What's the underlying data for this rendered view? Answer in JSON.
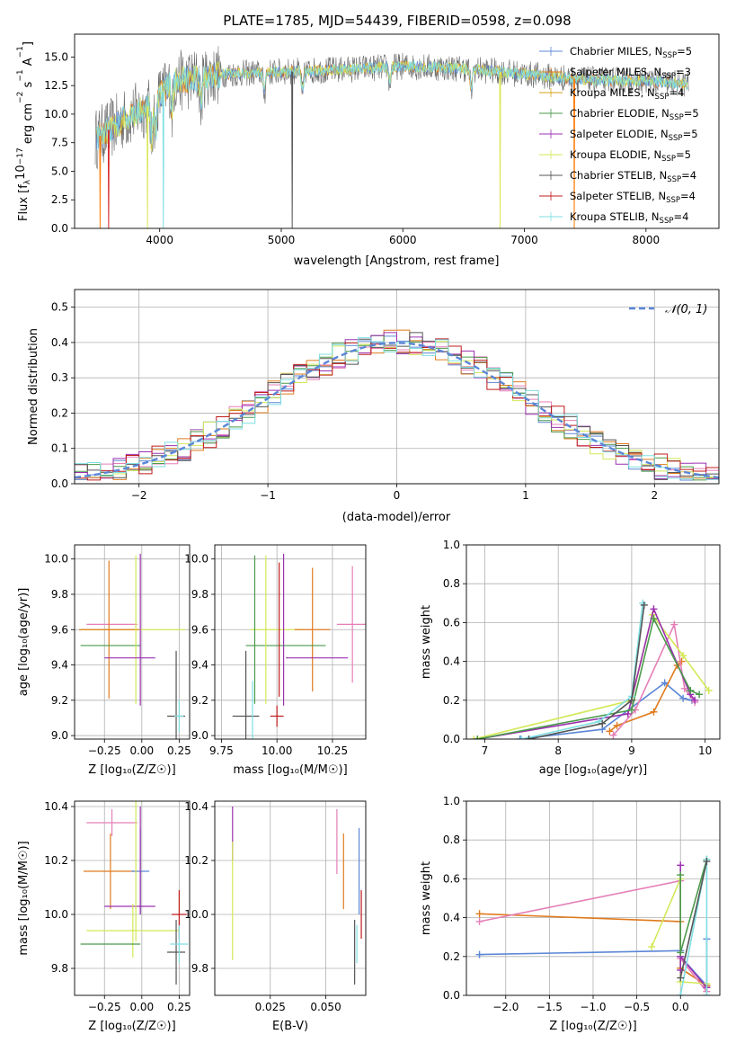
{
  "title": "PLATE=1785, MJD=54439, FIBERID=0598, z=0.098",
  "colors": {
    "chabrier_miles": "#1f77b4",
    "salpeter_miles": "#ff7f0e",
    "kroupa_miles": "#d4a017",
    "chabrier_elodie": "#2ca02c",
    "salpeter_elodie": "#9467bd",
    "kroupa_elodie": "#dbe85a",
    "chabrier_stelib": "#555555",
    "salpeter_stelib": "#d62728",
    "kroupa_stelib": "#7fdfe3",
    "blue": "#5b86d6",
    "orange": "#e07b1e",
    "pink": "#e57fb8",
    "green": "#4a9a4a",
    "purple": "#9b30b0",
    "yellow": "#d4e857",
    "cyan": "#7fdfe3",
    "red": "#c01c1c",
    "gray": "#555555",
    "grid": "#b0b0b0"
  },
  "legend_spectrum": [
    {
      "label": "Chabrier MILES, N",
      "sub": "SSP",
      "suffix": "=5",
      "color": "#5b86d6"
    },
    {
      "label": "Salpeter MILES, N",
      "sub": "SSP",
      "suffix": "=3",
      "color": "#e07b1e"
    },
    {
      "label": "Kroupa MILES, N",
      "sub": "SSP",
      "suffix": "=4",
      "color": "#d4a017"
    },
    {
      "label": "Chabrier ELODIE, N",
      "sub": "SSP",
      "suffix": "=5",
      "color": "#4a9a4a"
    },
    {
      "label": "Salpeter ELODIE, N",
      "sub": "SSP",
      "suffix": "=5",
      "color": "#9b30b0"
    },
    {
      "label": "Kroupa ELODIE, N",
      "sub": "SSP",
      "suffix": "=5",
      "color": "#d4e857"
    },
    {
      "label": "Chabrier STELIB, N",
      "sub": "SSP",
      "suffix": "=4",
      "color": "#555555"
    },
    {
      "label": "Salpeter STELIB, N",
      "sub": "SSP",
      "suffix": "=4",
      "color": "#c01c1c"
    },
    {
      "label": "Kroupa STELIB, N",
      "sub": "SSP",
      "suffix": "=4",
      "color": "#7fdfe3"
    }
  ],
  "legend_hist": "𝒩(0, 1)",
  "chart_data": [
    {
      "type": "line",
      "name": "spectrum",
      "xlabel": "wavelength [Angstrom, rest frame]",
      "ylabel_parts": [
        "Flux [f",
        "λ",
        "10",
        "−17",
        " erg cm",
        "−2",
        " s",
        "−1",
        " A",
        "−1",
        "]"
      ],
      "xlim": [
        3300,
        8600
      ],
      "ylim": [
        0,
        17
      ],
      "xticks": [
        4000,
        5000,
        6000,
        7000,
        8000
      ],
      "yticks": [
        0.0,
        2.5,
        5.0,
        7.5,
        10.0,
        12.5,
        15.0
      ],
      "ytick_labels": [
        "0.0",
        "2.5",
        "5.0",
        "7.5",
        "10.0",
        "12.5",
        "15.0"
      ],
      "x_start": 3470,
      "x_end": 8350,
      "continuum": [
        [
          3470,
          7.8
        ],
        [
          3700,
          9.5
        ],
        [
          3950,
          11.0
        ],
        [
          4100,
          12.8
        ],
        [
          4500,
          13.5
        ],
        [
          5000,
          13.7
        ],
        [
          5500,
          13.9
        ],
        [
          6000,
          14.2
        ],
        [
          6500,
          14.0
        ],
        [
          7000,
          13.5
        ],
        [
          7500,
          13.0
        ],
        [
          8000,
          12.9
        ],
        [
          8350,
          12.6
        ]
      ],
      "absorption": [
        [
          3933,
          3.5
        ],
        [
          3968,
          3.0
        ],
        [
          4101,
          2.5
        ],
        [
          4340,
          2.5
        ],
        [
          4861,
          2.0
        ],
        [
          5175,
          2.0
        ],
        [
          5893,
          1.5
        ],
        [
          6563,
          2.0
        ]
      ],
      "drops": [
        {
          "x": 3510,
          "series": "salpeter_miles"
        },
        {
          "x": 3580,
          "series": "salpeter_stelib"
        },
        {
          "x": 3900,
          "series": "kroupa_elodie"
        },
        {
          "x": 4030,
          "series": "kroupa_stelib"
        },
        {
          "x": 5090,
          "series": "chabrier_stelib"
        },
        {
          "x": 6800,
          "series": "kroupa_elodie"
        },
        {
          "x": 7410,
          "series": "salpeter_miles"
        }
      ]
    },
    {
      "type": "bar",
      "name": "residual-histogram",
      "xlabel": "(data-model)/error",
      "ylabel": "Normed distribution",
      "xlim": [
        -2.5,
        2.5
      ],
      "ylim": [
        0,
        0.55
      ],
      "xticks": [
        -2,
        -1,
        0,
        1,
        2
      ],
      "xtick_labels": [
        "−2",
        "−1",
        "0",
        "1",
        "2"
      ],
      "yticks": [
        0.0,
        0.1,
        0.2,
        0.3,
        0.4,
        0.5
      ],
      "ytick_labels": [
        "0.0",
        "0.1",
        "0.2",
        "0.3",
        "0.4",
        "0.5"
      ],
      "bin_width": 0.1,
      "gaussian": {
        "mean": 0,
        "sigma": 1
      }
    },
    {
      "type": "scatter",
      "name": "age-vs-metallicity",
      "xlabel": "Z [log₁₀(Z/Z☉)]",
      "ylabel": "age  [log₁₀(age/yr)]",
      "xlim": [
        -0.45,
        0.32
      ],
      "ylim": [
        8.98,
        10.08
      ],
      "xticks": [
        -0.25,
        0.0,
        0.25
      ],
      "xtick_labels": [
        "−0.25",
        "0.00",
        "0.25"
      ],
      "yticks": [
        9.0,
        9.2,
        9.4,
        9.6,
        9.8,
        10.0
      ],
      "ytick_labels": [
        "9.0",
        "9.2",
        "9.4",
        "9.6",
        "9.8",
        "10.0"
      ],
      "points": [
        {
          "x": -0.2,
          "y": 9.63,
          "xerr": 0.17,
          "yerr": 0.0,
          "color": "pink"
        },
        {
          "x": -0.06,
          "y": 9.6,
          "xerr": 0.35,
          "yerr": 0.0,
          "color": "yellow"
        },
        {
          "x": -0.22,
          "y": 9.6,
          "xerr": 0.2,
          "yerr": 0.39,
          "color": "orange"
        },
        {
          "x": -0.21,
          "y": 9.51,
          "xerr": 0.2,
          "yerr": 0.0,
          "color": "green"
        },
        {
          "x": -0.04,
          "y": 9.6,
          "xerr": 0.0,
          "yerr": 0.42,
          "color": "yellow"
        },
        {
          "x": -0.01,
          "y": 9.6,
          "xerr": 0.0,
          "yerr": 0.43,
          "color": "purple"
        },
        {
          "x": -0.08,
          "y": 9.44,
          "xerr": 0.17,
          "yerr": 0.0,
          "color": "purple"
        },
        {
          "x": 0.23,
          "y": 9.11,
          "xerr": 0.06,
          "yerr": 0.37,
          "color": "gray"
        },
        {
          "x": 0.25,
          "y": 9.11,
          "xerr": 0.03,
          "yerr": 0.09,
          "color": "cyan"
        }
      ]
    },
    {
      "type": "scatter",
      "name": "age-vs-mass",
      "xlabel": "mass [log₁₀(M/M☉)]",
      "ylabel": "",
      "xlim": [
        9.72,
        10.4
      ],
      "ylim": [
        8.98,
        10.08
      ],
      "xticks": [
        9.75,
        10.0,
        10.25
      ],
      "xtick_labels": [
        "9.75",
        "10.00",
        "10.25"
      ],
      "yticks": [
        9.0,
        9.2,
        9.4,
        9.6,
        9.8,
        10.0
      ],
      "ytick_labels": [
        "9.0",
        "9.2",
        "9.4",
        "9.6",
        "9.8",
        "10.0"
      ],
      "points": [
        {
          "x": 10.34,
          "y": 9.63,
          "xerr": 0.07,
          "yerr": 0.33,
          "color": "pink"
        },
        {
          "x": 10.0,
          "y": 9.6,
          "xerr": 0.12,
          "yerr": 0.0,
          "color": "yellow"
        },
        {
          "x": 10.16,
          "y": 9.6,
          "xerr": 0.08,
          "yerr": 0.35,
          "color": "orange"
        },
        {
          "x": 10.04,
          "y": 9.51,
          "xerr": 0.18,
          "yerr": 0.0,
          "color": "green"
        },
        {
          "x": 9.95,
          "y": 9.6,
          "xerr": 0.0,
          "yerr": 0.42,
          "color": "yellow"
        },
        {
          "x": 10.03,
          "y": 9.6,
          "xerr": 0.0,
          "yerr": 0.43,
          "color": "purple"
        },
        {
          "x": 10.18,
          "y": 9.44,
          "xerr": 0.14,
          "yerr": 0.0,
          "color": "purple"
        },
        {
          "x": 9.86,
          "y": 9.11,
          "xerr": 0.06,
          "yerr": 0.37,
          "color": "gray"
        },
        {
          "x": 9.89,
          "y": 9.11,
          "xerr": 0.0,
          "yerr": 0.2,
          "color": "cyan"
        },
        {
          "x": 10.0,
          "y": 9.11,
          "xerr": 0.03,
          "yerr": 0.06,
          "color": "red"
        },
        {
          "x": 9.9,
          "y": 9.6,
          "xerr": 0.0,
          "yerr": 0.42,
          "color": "green"
        },
        {
          "x": 10.01,
          "y": 9.6,
          "xerr": 0.0,
          "yerr": 0.38,
          "color": "red"
        }
      ]
    },
    {
      "type": "line",
      "name": "mass-weight-vs-age",
      "xlabel": "age  [log₁₀(age/yr)]",
      "ylabel": "mass weight",
      "xlim": [
        6.75,
        10.2
      ],
      "ylim": [
        0,
        1
      ],
      "xticks": [
        7,
        8,
        9,
        10
      ],
      "xtick_labels": [
        "7",
        "8",
        "9",
        "10"
      ],
      "yticks": [
        0.0,
        0.2,
        0.4,
        0.6,
        0.8,
        1.0
      ],
      "ytick_labels": [
        "0.0",
        "0.2",
        "0.4",
        "0.6",
        "0.8",
        "1.0"
      ],
      "series": [
        {
          "color": "blue",
          "x": [
            7.48,
            8.6,
            9.45,
            9.7,
            9.82
          ],
          "y": [
            0.0,
            0.05,
            0.29,
            0.21,
            0.2
          ]
        },
        {
          "color": "orange",
          "x": [
            8.7,
            8.8,
            9.3,
            9.62,
            9.68
          ],
          "y": [
            0.04,
            0.07,
            0.14,
            0.38,
            0.4
          ]
        },
        {
          "color": "pink",
          "x": [
            8.75,
            9.05,
            9.58,
            9.72,
            9.86
          ],
          "y": [
            0.02,
            0.15,
            0.59,
            0.26,
            0.19
          ]
        },
        {
          "color": "yellow",
          "x": [
            6.85,
            9.0,
            9.28,
            9.7,
            10.05
          ],
          "y": [
            0.0,
            0.2,
            0.64,
            0.43,
            0.25
          ]
        },
        {
          "color": "purple",
          "x": [
            6.9,
            8.95,
            9.3,
            9.8,
            9.86
          ],
          "y": [
            0.0,
            0.13,
            0.67,
            0.23,
            0.2
          ]
        },
        {
          "color": "green",
          "x": [
            6.9,
            9.0,
            9.3,
            9.8,
            9.92
          ],
          "y": [
            0.0,
            0.15,
            0.62,
            0.25,
            0.23
          ]
        },
        {
          "color": "cyan",
          "x": [
            7.5,
            8.55,
            9.0,
            9.15
          ],
          "y": [
            0.0,
            0.09,
            0.22,
            0.7
          ]
        },
        {
          "color": "gray",
          "x": [
            7.6,
            8.6,
            9.0,
            9.17
          ],
          "y": [
            0.0,
            0.08,
            0.2,
            0.69
          ]
        }
      ]
    },
    {
      "type": "scatter",
      "name": "mass-vs-metallicity",
      "xlabel": "Z [log₁₀(Z/Z☉)]",
      "ylabel": "mass [log₁₀(M/M☉)]",
      "xlim": [
        -0.45,
        0.32
      ],
      "ylim": [
        9.7,
        10.42
      ],
      "xticks": [
        -0.25,
        0.0,
        0.25
      ],
      "xtick_labels": [
        "−0.25",
        "0.00",
        "0.25"
      ],
      "yticks": [
        9.8,
        10.0,
        10.2,
        10.4
      ],
      "ytick_labels": [
        "9.8",
        "10.0",
        "10.2",
        "10.4"
      ],
      "points": [
        {
          "x": -0.2,
          "y": 10.34,
          "xerr": 0.17,
          "yerr": 0.05,
          "color": "pink"
        },
        {
          "x": -0.21,
          "y": 10.16,
          "xerr": 0.18,
          "yerr": 0.14,
          "color": "orange"
        },
        {
          "x": -0.01,
          "y": 10.16,
          "xerr": 0.06,
          "yerr": 0.16,
          "color": "blue"
        },
        {
          "x": -0.08,
          "y": 10.03,
          "xerr": 0.17,
          "yerr": 0.0,
          "color": "purple"
        },
        {
          "x": -0.01,
          "y": 10.2,
          "xerr": 0.0,
          "yerr": 0.2,
          "color": "purple"
        },
        {
          "x": -0.06,
          "y": 9.94,
          "xerr": 0.31,
          "yerr": 0.1,
          "color": "yellow"
        },
        {
          "x": -0.21,
          "y": 9.89,
          "xerr": 0.2,
          "yerr": 0.0,
          "color": "green"
        },
        {
          "x": 0.25,
          "y": 10.0,
          "xerr": 0.05,
          "yerr": 0.09,
          "color": "red"
        },
        {
          "x": 0.23,
          "y": 9.86,
          "xerr": 0.06,
          "yerr": 0.12,
          "color": "gray"
        },
        {
          "x": 0.25,
          "y": 9.89,
          "xerr": 0.06,
          "yerr": 0.07,
          "color": "cyan"
        },
        {
          "x": -0.04,
          "y": 10.2,
          "xerr": 0.0,
          "yerr": 0.3,
          "color": "yellow"
        }
      ]
    },
    {
      "type": "scatter",
      "name": "mass-vs-ebv",
      "xlabel": "E(B-V)",
      "ylabel": "",
      "xlim": [
        0.0,
        0.068
      ],
      "ylim": [
        9.7,
        10.42
      ],
      "xticks": [
        0.025,
        0.05
      ],
      "xtick_labels": [
        "0.025",
        "0.050"
      ],
      "yticks": [
        9.8,
        10.0,
        10.2,
        10.4
      ],
      "ytick_labels": [
        "9.8",
        "10.0",
        "10.2",
        "10.4"
      ],
      "points": [
        {
          "x": 0.008,
          "y": 10.3,
          "xerr": 0.0,
          "yerr": 0.1,
          "color": "purple"
        },
        {
          "x": 0.008,
          "y": 10.05,
          "xerr": 0.0,
          "yerr": 0.22,
          "color": "yellow"
        },
        {
          "x": 0.055,
          "y": 10.27,
          "xerr": 0.0,
          "yerr": 0.12,
          "color": "pink"
        },
        {
          "x": 0.058,
          "y": 10.16,
          "xerr": 0.0,
          "yerr": 0.14,
          "color": "orange"
        },
        {
          "x": 0.065,
          "y": 10.16,
          "xerr": 0.0,
          "yerr": 0.16,
          "color": "blue"
        },
        {
          "x": 0.066,
          "y": 10.0,
          "xerr": 0.0,
          "yerr": 0.09,
          "color": "red"
        },
        {
          "x": 0.063,
          "y": 9.86,
          "xerr": 0.0,
          "yerr": 0.12,
          "color": "gray"
        },
        {
          "x": 0.064,
          "y": 9.89,
          "xerr": 0.0,
          "yerr": 0.07,
          "color": "cyan"
        }
      ]
    },
    {
      "type": "line",
      "name": "mass-weight-vs-metallicity",
      "xlabel": "Z [log₁₀(Z/Z☉)]",
      "ylabel": "mass weight",
      "xlim": [
        -2.45,
        0.45
      ],
      "ylim": [
        0,
        1
      ],
      "xticks": [
        -2.0,
        -1.5,
        -1.0,
        -0.5,
        0.0
      ],
      "xtick_labels": [
        "−2.0",
        "−1.5",
        "−1.0",
        "−0.5",
        "0.0"
      ],
      "yticks": [
        0.0,
        0.2,
        0.4,
        0.6,
        0.8,
        1.0
      ],
      "ytick_labels": [
        "0.0",
        "0.2",
        "0.4",
        "0.6",
        "0.8",
        "1.0"
      ],
      "series": [
        {
          "color": "blue",
          "x": [
            -2.3,
            0.0,
            0.0,
            0.3,
            0.3
          ],
          "y": [
            0.21,
            0.23,
            0.2,
            0.05,
            0.29
          ]
        },
        {
          "color": "orange",
          "x": [
            -2.3,
            0.0,
            0.0,
            0.3,
            0.3
          ],
          "y": [
            0.42,
            0.38,
            0.14,
            0.05,
            0.04
          ]
        },
        {
          "color": "pink",
          "x": [
            -2.3,
            0.0,
            0.0,
            0.3
          ],
          "y": [
            0.38,
            0.59,
            0.19,
            0.02
          ]
        },
        {
          "color": "yellow",
          "x": [
            -0.33,
            0.0,
            0.0,
            0.3
          ],
          "y": [
            0.25,
            0.6,
            0.07,
            0.06
          ]
        },
        {
          "color": "purple",
          "x": [
            0.0,
            0.0,
            0.0,
            0.3
          ],
          "y": [
            0.67,
            0.13,
            0.2,
            0.04
          ]
        },
        {
          "color": "green",
          "x": [
            0.0,
            0.0,
            0.3
          ],
          "y": [
            0.62,
            0.22,
            0.7
          ]
        },
        {
          "color": "cyan",
          "x": [
            0.0,
            0.3,
            0.3
          ],
          "y": [
            0.0,
            0.7,
            0.0
          ]
        },
        {
          "color": "gray",
          "x": [
            0.0,
            0.3
          ],
          "y": [
            0.09,
            0.69
          ]
        }
      ]
    }
  ]
}
